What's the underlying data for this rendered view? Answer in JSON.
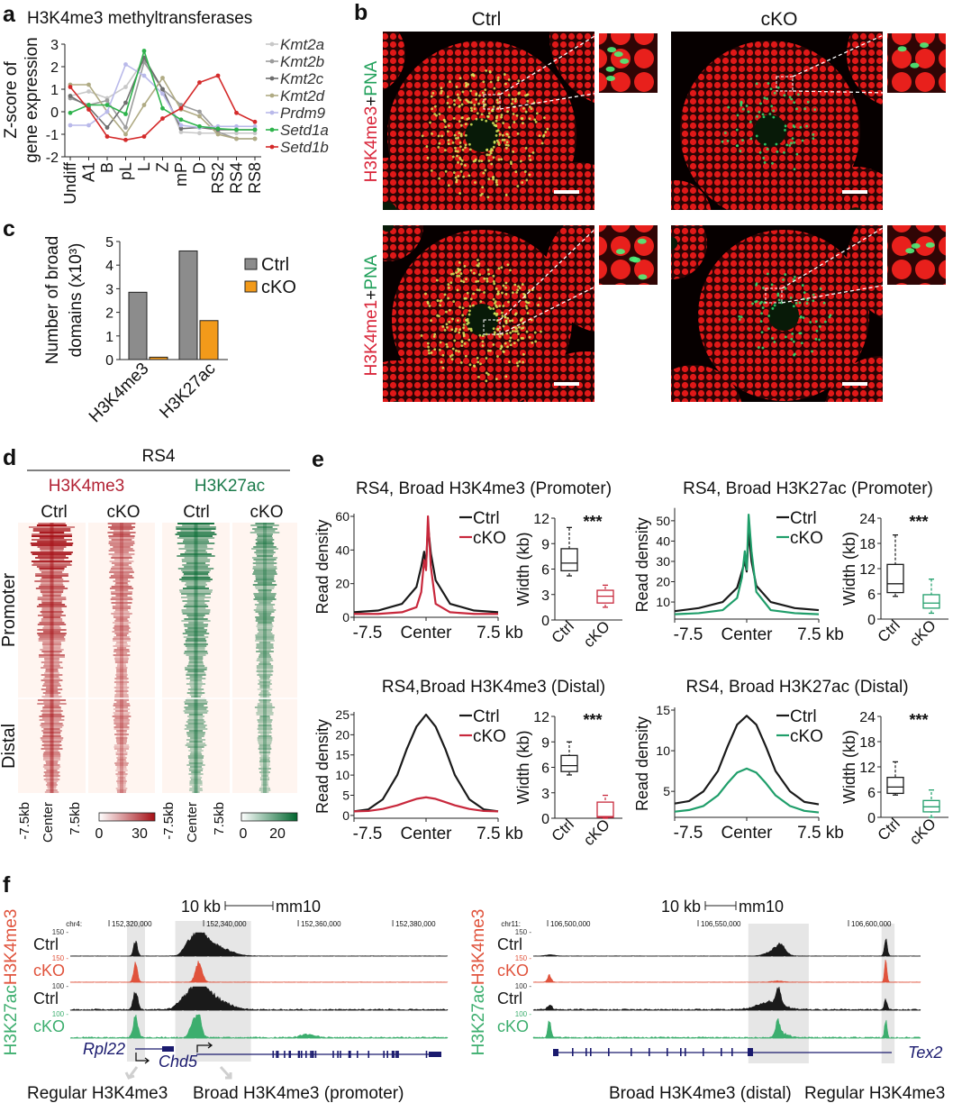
{
  "panel_labels": {
    "a": "a",
    "b": "b",
    "c": "c",
    "d": "d",
    "e": "e",
    "f": "f"
  },
  "chart_data": [
    {
      "id": "a",
      "type": "line",
      "title": "H3K4me3 methyltransferases",
      "ylabel": [
        "Z-score of",
        "gene expression"
      ],
      "categories": [
        "Undiff",
        "A1",
        "B",
        "pL",
        "L",
        "Z",
        "mP",
        "D",
        "RS2",
        "RS4",
        "RS8"
      ],
      "ylim": [
        -2,
        3
      ],
      "yticks": [
        3,
        2,
        1,
        0,
        -1,
        -2
      ],
      "legend": "right",
      "series": [
        {
          "name": "Kmt2a",
          "color": "#c8c8c8",
          "values": [
            0.7,
            0.9,
            0.6,
            1.1,
            2.3,
            1.0,
            -0.9,
            -0.95,
            -0.95,
            -0.95,
            -0.95
          ]
        },
        {
          "name": "Kmt2b",
          "color": "#9c9c9c",
          "values": [
            0.6,
            0.3,
            0.5,
            -0.7,
            2.2,
            1.0,
            0.3,
            0.0,
            -0.9,
            -1.2,
            -1.2
          ]
        },
        {
          "name": "Kmt2c",
          "color": "#6e6e6e",
          "values": [
            0.7,
            0.2,
            -0.7,
            0.4,
            2.4,
            1.0,
            -0.75,
            -0.7,
            -0.8,
            -0.8,
            -0.8
          ]
        },
        {
          "name": "Kmt2d",
          "color": "#b0ab84",
          "values": [
            1.2,
            1.2,
            0.0,
            -1.0,
            0.3,
            1.5,
            0.1,
            -0.2,
            -1.0,
            -1.2,
            -1.2
          ]
        },
        {
          "name": "Prdm9",
          "color": "#b9b9ea",
          "values": [
            -0.6,
            -0.6,
            0.0,
            2.1,
            1.6,
            0.8,
            -0.6,
            -0.7,
            -0.65,
            -0.65,
            -0.65
          ]
        },
        {
          "name": "Setd1a",
          "color": "#2eb34c",
          "values": [
            -0.05,
            0.3,
            0.3,
            -0.1,
            2.7,
            0.15,
            -0.35,
            -0.65,
            -0.75,
            -0.8,
            -0.8
          ]
        },
        {
          "name": "Setd1b",
          "color": "#d42a2a",
          "values": [
            1.1,
            0.1,
            -1.1,
            -1.25,
            -1.1,
            -0.3,
            0.15,
            1.3,
            1.6,
            -0.05,
            -0.45
          ]
        }
      ]
    },
    {
      "id": "c",
      "type": "bar",
      "ylabel": [
        "Number of broad",
        "domains (x10³)"
      ],
      "categories": [
        "H3K4me3",
        "H3K27ac"
      ],
      "ylim": [
        0,
        5
      ],
      "yticks": [
        0,
        1,
        2,
        3,
        4,
        5
      ],
      "legend": "right",
      "series": [
        {
          "name": "Ctrl",
          "color": "#8c8c8c",
          "values": [
            2.85,
            4.6
          ]
        },
        {
          "name": "cKO",
          "color": "#f29a1a",
          "values": [
            0.1,
            1.65
          ]
        }
      ]
    },
    {
      "id": "e1",
      "type": "line",
      "title": "RS4, Broad H3K4me3 (Promoter)",
      "ylabel": "Read density",
      "xticks": [
        "-7.5",
        "Center",
        "7.5 kb"
      ],
      "ylim": [
        0,
        60
      ],
      "yticks": [
        0,
        20,
        40,
        60
      ],
      "x": [
        -7.5,
        -5,
        -2.5,
        -1,
        -0.5,
        -0.2,
        0,
        0.2,
        0.5,
        1,
        2.5,
        5,
        7.5
      ],
      "series": [
        {
          "name": "Ctrl",
          "color": "#1a1a1a",
          "values": [
            3,
            4,
            8,
            18,
            30,
            39,
            30,
            55,
            38,
            22,
            8,
            4,
            3
          ]
        },
        {
          "name": "cKO",
          "color": "#c8283c",
          "values": [
            2,
            2,
            3,
            6,
            15,
            34,
            28,
            60,
            30,
            8,
            3,
            2,
            2
          ]
        }
      ],
      "box": {
        "ylabel": "Width (kb)",
        "ylim": [
          0,
          12
        ],
        "yticks": [
          0,
          3,
          6,
          9,
          12
        ],
        "significance": "***",
        "groups": [
          {
            "name": "Ctrl",
            "color": "#1a1a1a",
            "stats": [
              5.2,
              5.8,
              6.7,
              8.4,
              10.9
            ]
          },
          {
            "name": "cKO",
            "color": "#c8283c",
            "stats": [
              1.5,
              2.0,
              2.8,
              3.5,
              4.1
            ]
          }
        ]
      }
    },
    {
      "id": "e2",
      "type": "line",
      "title": "RS4, Broad H3K27ac (Promoter)",
      "ylabel": "Read density",
      "xticks": [
        "-7.5",
        "Center",
        "7.5 kb"
      ],
      "ylim": [
        1.6,
        55
      ],
      "yticks": [
        10,
        20,
        30,
        40,
        50
      ],
      "x": [
        -7.5,
        -5,
        -2.5,
        -1,
        -0.5,
        -0.2,
        0,
        0.2,
        0.5,
        1,
        2.5,
        5,
        7.5
      ],
      "series": [
        {
          "name": "Ctrl",
          "color": "#1a1a1a",
          "values": [
            5.5,
            7,
            10,
            17,
            25,
            30,
            25,
            45,
            30,
            18,
            10,
            7,
            6
          ]
        },
        {
          "name": "cKO",
          "color": "#1f9e6a",
          "values": [
            4,
            4.5,
            6,
            12,
            22,
            35,
            26,
            53,
            35,
            15,
            6,
            4.5,
            4
          ]
        }
      ],
      "box": {
        "ylabel": "Width (kb)",
        "ylim": [
          0,
          24
        ],
        "yticks": [
          0,
          6,
          12,
          18,
          24
        ],
        "significance": "***",
        "groups": [
          {
            "name": "Ctrl",
            "color": "#1a1a1a",
            "stats": [
              5.4,
              6.3,
              8.4,
              13,
              20
            ]
          },
          {
            "name": "cKO",
            "color": "#1f9e6a",
            "stats": [
              1.4,
              2.6,
              3.8,
              5.8,
              9.5
            ]
          }
        ]
      }
    },
    {
      "id": "e3",
      "type": "line",
      "title": "RS4,Broad H3K4me3 (Distal)",
      "ylabel": "Read density",
      "xticks": [
        "-7.5",
        "Center",
        "7.5 kb"
      ],
      "ylim": [
        -0.7,
        25
      ],
      "yticks": [
        0,
        5,
        10,
        15,
        20,
        25
      ],
      "x": [
        -7.5,
        -6,
        -4.5,
        -3,
        -2,
        -1,
        0,
        1,
        2,
        3,
        4.5,
        6,
        7.5
      ],
      "series": [
        {
          "name": "Ctrl",
          "color": "#1a1a1a",
          "values": [
            1,
            1.5,
            4,
            10,
            16.5,
            22,
            25,
            22,
            16.5,
            10,
            4,
            1.5,
            1
          ]
        },
        {
          "name": "cKO",
          "color": "#c8283c",
          "values": [
            1,
            1.1,
            1.6,
            2.5,
            3.3,
            4.1,
            4.5,
            4.1,
            3.3,
            2.5,
            1.6,
            1.1,
            1
          ]
        }
      ],
      "box": {
        "ylabel": "Width (kb)",
        "ylim": [
          0,
          12
        ],
        "yticks": [
          0,
          3,
          6,
          9,
          12
        ],
        "significance": "***",
        "groups": [
          {
            "name": "Ctrl",
            "color": "#1a1a1a",
            "stats": [
              5.1,
              5.5,
              6.2,
              7.4,
              9
            ]
          },
          {
            "name": "cKO",
            "color": "#c8283c",
            "stats": [
              0,
              0.1,
              0.2,
              1.9,
              2.7
            ]
          }
        ]
      }
    },
    {
      "id": "e4",
      "type": "line",
      "title": "RS4, Broad H3K27ac (Distal)",
      "ylabel": "Read density",
      "xticks": [
        "-7.5",
        "Center",
        "7.5 kb"
      ],
      "ylim": [
        1.8,
        15
      ],
      "yticks": [
        5,
        10,
        15
      ],
      "x": [
        -7.5,
        -6,
        -4.5,
        -3,
        -2,
        -1,
        0,
        1,
        2,
        3,
        4.5,
        6,
        7.5
      ],
      "series": [
        {
          "name": "Ctrl",
          "color": "#1a1a1a",
          "values": [
            3.5,
            3.8,
            5,
            7.5,
            10.5,
            13.2,
            14.3,
            13.2,
            10.5,
            7.5,
            5,
            3.7,
            3.4
          ]
        },
        {
          "name": "cKO",
          "color": "#1f9e6a",
          "values": [
            2.5,
            2.7,
            3.2,
            4.5,
            6,
            7.3,
            7.8,
            7.3,
            6,
            4.5,
            3.2,
            2.6,
            2.4
          ]
        }
      ],
      "box": {
        "ylabel": "Width (kb)",
        "ylim": [
          0,
          24
        ],
        "yticks": [
          0,
          6,
          12,
          18,
          24
        ],
        "significance": "***",
        "groups": [
          {
            "name": "Ctrl",
            "color": "#1a1a1a",
            "stats": [
              5.3,
              5.7,
              7.2,
              9.5,
              13.2
            ]
          },
          {
            "name": "cKO",
            "color": "#1f9e6a",
            "stats": [
              0,
              1.3,
              2.5,
              4,
              6.5
            ]
          }
        ]
      }
    }
  ],
  "panel_b": {
    "columns": [
      "Ctrl",
      "cKO"
    ],
    "rows": [
      {
        "mark": "H3K4me3",
        "plus": "+",
        "stain": "PNA"
      },
      {
        "mark": "H3K4me1",
        "plus": "+",
        "stain": "PNA"
      }
    ],
    "colors": {
      "mark": "#d9263a",
      "stain": "#1fa05a"
    }
  },
  "panel_d": {
    "title": "RS4",
    "marks": [
      {
        "name": "H3K4me3",
        "color": "#b22234"
      },
      {
        "name": "H3K27ac",
        "color": "#1a7a4a"
      }
    ],
    "conditions": [
      "Ctrl",
      "cKO"
    ],
    "rows": [
      "Promoter",
      "Distal"
    ],
    "xticks": [
      "-7.5kb",
      "Center",
      "7.5kb"
    ],
    "colorbars": [
      {
        "min": "0",
        "max": "30",
        "color": "#a50f15"
      },
      {
        "min": "0",
        "max": "20",
        "color": "#00662e"
      }
    ]
  },
  "panel_f": {
    "assembly": "mm10",
    "scale_label": "10 kb",
    "side_label": {
      "ac": "H3K27ac",
      "me3": "H3K4me3"
    },
    "track_labels": [
      "Ctrl",
      "cKO",
      "Ctrl",
      "cKO"
    ],
    "track_colors": [
      "#1a1a1a",
      "#e0533c",
      "#1a1a1a",
      "#3cae6e"
    ],
    "loci": [
      {
        "chrom": "chr4:",
        "coords": [
          "152,320,000",
          "152,340,000",
          "152,360,000",
          "152,380,000"
        ],
        "coord_values": [
          152320000,
          152340000,
          152360000,
          152380000
        ],
        "range": [
          152311800,
          152391600
        ],
        "scales": [
          "150 -",
          "150 -",
          "100 -",
          "100 -"
        ],
        "track_max": [
          150,
          150,
          100,
          100
        ],
        "highlights": [
          [
            152323800,
            152327600
          ],
          [
            152334000,
            152350000
          ]
        ],
        "peaks": [
          [
            [
              152325600,
              100,
              400
            ],
            [
              152339000,
              140,
              1500
            ],
            [
              152342000,
              70,
              3000
            ],
            [
              152336500,
              50,
              900
            ]
          ],
          [
            [
              152325600,
              140,
              400
            ],
            [
              152339000,
              130,
              700
            ]
          ],
          [
            [
              152325600,
              80,
              500
            ],
            [
              152339000,
              90,
              1500
            ],
            [
              152341500,
              60,
              3000
            ],
            [
              152336000,
              40,
              1500
            ]
          ],
          [
            [
              152325600,
              95,
              500
            ],
            [
              152337800,
              70,
              700
            ],
            [
              152339000,
              90,
              600
            ],
            [
              152362000,
              15,
              1500
            ]
          ]
        ],
        "genes": [
          {
            "name": "Rpl22"
          },
          {
            "name": "Chd5"
          }
        ],
        "annotations": [
          "Regular H3K4me3",
          "Broad H3K4me3 (promoter)"
        ]
      },
      {
        "chrom": "chr11:",
        "coords": [
          "106,500,000",
          "106,550,000",
          "106,600,000"
        ],
        "coord_values": [
          106500000,
          106550000,
          106600000
        ],
        "range": [
          106495200,
          106623950
        ],
        "scales": [
          "150 -",
          "150 -",
          "100 -",
          "100 -"
        ],
        "track_max": [
          150,
          150,
          100,
          100
        ],
        "highlights": [
          [
            106566700,
            106586800
          ],
          [
            106611000,
            106615300
          ]
        ],
        "peaks": [
          [
            [
              106501000,
              8,
              1500
            ],
            [
              106575500,
              40,
              2500
            ],
            [
              106577500,
              50,
              1500
            ],
            [
              106612400,
              110,
              500
            ]
          ],
          [
            [
              106500600,
              50,
              600
            ],
            [
              106576500,
              8,
              2000
            ],
            [
              106612400,
              150,
              400
            ]
          ],
          [
            [
              106500700,
              20,
              800
            ],
            [
              106576700,
              70,
              800
            ],
            [
              106574000,
              35,
              4000
            ],
            [
              106612400,
              45,
              500
            ]
          ],
          [
            [
              106500600,
              85,
              500
            ],
            [
              106576500,
              65,
              700
            ],
            [
              106612400,
              80,
              400
            ],
            [
              106578000,
              20,
              2000
            ]
          ]
        ],
        "genes": [
          {
            "name": "Tex2"
          }
        ],
        "annotations": [
          "Broad H3K4me3 (distal)",
          "Regular H3K4me3"
        ]
      }
    ]
  }
}
